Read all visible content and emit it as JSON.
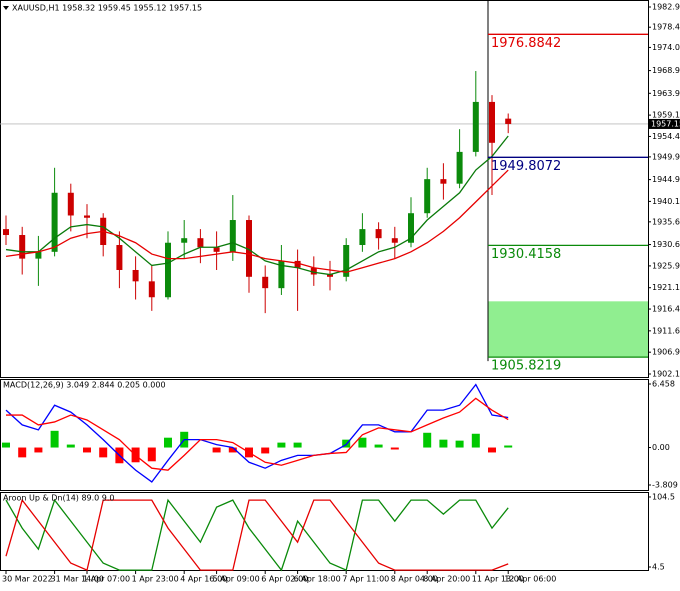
{
  "chart_data": [
    {
      "type": "candlestick",
      "title": "XAUUSD,H1  1958.32 1959.45 1955.12 1957.15",
      "categories": [
        "30 Mar 2022",
        null,
        null,
        "31 Mar 14:00",
        null,
        "1 Apr 07:00",
        null,
        null,
        "1 Apr 23:00",
        null,
        null,
        "4 Apr 16:00",
        null,
        "5 Apr 09:00",
        null,
        null,
        "6 Apr 02:00",
        null,
        "6 Apr 18:00",
        null,
        null,
        "7 Apr 11:00",
        null,
        null,
        "8 Apr 04:00",
        null,
        "8 Apr 20:00",
        null,
        null,
        "11 Apr 13:00",
        null,
        "12 Apr 06:00"
      ],
      "open": [
        1934.0,
        1932.7,
        1927.5,
        1929.0,
        1942.0,
        1937.0,
        1936.5,
        1930.5,
        1925.0,
        1922.5,
        1919.0,
        1931.0,
        1932.0,
        1930.0,
        1929.0,
        1936.0,
        1923.5,
        1921.0,
        1927.0,
        1925.5,
        1924.0,
        1923.5,
        1930.5,
        1934.0,
        1932.0,
        1931.0,
        1937.5,
        1945.0,
        1944.0,
        1951.0,
        1962.0,
        1958.32
      ],
      "high": [
        1937.0,
        1934.5,
        1932.5,
        1947.5,
        1944.0,
        1939.5,
        1937.5,
        1933.5,
        1928.0,
        1926.0,
        1933.5,
        1936.0,
        1934.0,
        1933.5,
        1941.5,
        1937.0,
        1926.0,
        1930.5,
        1929.5,
        1928.0,
        1927.0,
        1932.0,
        1937.5,
        1935.5,
        1934.5,
        1941.0,
        1947.5,
        1948.5,
        1956.0,
        1968.8,
        1963.5,
        1959.45
      ],
      "low": [
        1930.5,
        1924.0,
        1921.5,
        1928.0,
        1933.5,
        1932.0,
        1928.0,
        1921.0,
        1918.5,
        1916.0,
        1918.5,
        1927.5,
        1926.5,
        1925.0,
        1927.0,
        1920.0,
        1915.5,
        1919.5,
        1916.0,
        1921.5,
        1920.5,
        1922.5,
        1929.0,
        1929.5,
        1927.5,
        1930.0,
        1936.5,
        1940.5,
        1943.0,
        1950.0,
        1941.5,
        1955.12
      ],
      "close": [
        1932.7,
        1927.5,
        1929.0,
        1942.0,
        1937.0,
        1936.5,
        1930.5,
        1925.0,
        1922.5,
        1919.0,
        1931.0,
        1932.0,
        1930.0,
        1929.0,
        1936.0,
        1923.5,
        1921.0,
        1927.0,
        1925.5,
        1924.0,
        1923.5,
        1930.5,
        1934.0,
        1932.0,
        1931.0,
        1937.5,
        1945.0,
        1944.0,
        1951.0,
        1962.0,
        1953.0,
        1957.15
      ],
      "up_color": "#0b8a0b",
      "down_color": "#cc0000",
      "series": [
        {
          "color": "#0a7a0a",
          "values": [
            1929.5,
            1929,
            1929,
            1932,
            1934.5,
            1935,
            1934.5,
            1932,
            1929,
            1926,
            1926.5,
            1928.5,
            1930,
            1930,
            1931,
            1929.5,
            1927,
            1926,
            1925.5,
            1924.5,
            1924,
            1925,
            1927,
            1929,
            1930,
            1932,
            1936,
            1939,
            1942,
            1947,
            1950,
            1954.5
          ]
        },
        {
          "color": "#e60000",
          "values": [
            1928,
            1928.5,
            1929,
            1930,
            1932,
            1933,
            1933.5,
            1932.5,
            1931,
            1928.5,
            1927.5,
            1927.5,
            1928,
            1928.5,
            1929,
            1928.5,
            1927.5,
            1927,
            1926.5,
            1925.5,
            1925,
            1924.5,
            1925.5,
            1926.5,
            1927.5,
            1929,
            1931,
            1933.5,
            1936.5,
            1940,
            1943.5,
            1947
          ]
        }
      ],
      "levels": [
        {
          "value": 1976.8842,
          "color": "#e00000"
        },
        {
          "value": 1949.8072,
          "color": "#000080"
        },
        {
          "value": 1930.4158,
          "color": "#0a8a0a"
        },
        {
          "value": 1905.8219,
          "color": "#0a8a0a"
        }
      ],
      "zone": [
        1905.8219,
        1918.1
      ],
      "zone_color": "#90ee90",
      "current_price": 1957.15,
      "ylim": [
        1901.44,
        1984.44
      ],
      "yticks": [
        {
          "value": 1982.9,
          "label": "1982.90"
        },
        1978.45,
        {
          "value": 1974,
          "label": "1974.00"
        },
        {
          "value": 1968.9,
          "label": "1968.90"
        },
        {
          "value": 1963.9,
          "label": "1963.90"
        },
        {
          "value": 1959.1,
          "label": "1959.10"
        },
        {
          "value": 1954.4,
          "label": "1954.40"
        },
        {
          "value": 1949.9,
          "label": "1949.90"
        },
        {
          "value": 1944.9,
          "label": "1944.90"
        },
        {
          "value": 1940.1,
          "label": "1940.10"
        },
        {
          "value": 1935.6,
          "label": "1935.60"
        },
        {
          "value": 1930.6,
          "label": "1930.60"
        },
        {
          "value": 1925.9,
          "label": "1925.90"
        },
        {
          "value": 1921.1,
          "label": "1921.10"
        },
        {
          "value": 1916.4,
          "label": "1916.40"
        },
        {
          "value": 1911.6,
          "label": "1911.60"
        },
        {
          "value": 1906.9,
          "label": "1906.90"
        },
        {
          "value": 1902.1,
          "label": "1902.10"
        }
      ]
    },
    {
      "type": "macd",
      "title": "MACD(12,26,9) 3.049 2.844 0.205 0.000",
      "series": [
        {
          "color": "#0000ff",
          "values": [
            3.8,
            2.3,
            1.8,
            4.3,
            3.6,
            2.3,
            0.8,
            -0.8,
            -2.3,
            -3.5,
            -1.3,
            0.8,
            0.8,
            0.3,
            0,
            -1.5,
            -2.1,
            -1.3,
            -0.8,
            -0.8,
            -0.6,
            0.3,
            2.3,
            2.3,
            1.6,
            1.6,
            3.8,
            3.8,
            4.3,
            6.4,
            3.3,
            3.049
          ]
        },
        {
          "color": "#ff0000",
          "values": [
            3.3,
            3.3,
            2.3,
            2.6,
            3.3,
            2.8,
            1.8,
            0.8,
            -0.8,
            -2.1,
            -2.3,
            -0.8,
            0.8,
            0.8,
            0.5,
            -0.5,
            -1.5,
            -1.8,
            -1.3,
            -0.8,
            -0.6,
            -0.5,
            1.3,
            2,
            1.8,
            1.6,
            2.3,
            3,
            3.6,
            5,
            3.8,
            2.844
          ]
        }
      ],
      "histogram": {
        "values": [
          0.5,
          -1.0,
          -0.5,
          1.7,
          0.3,
          -0.5,
          -1.0,
          -1.6,
          -1.5,
          -1.4,
          1.0,
          1.6,
          0,
          -0.5,
          -0.5,
          -1.0,
          -0.6,
          0.5,
          0.5,
          0,
          0,
          0.8,
          1.0,
          0.3,
          -0.2,
          0,
          1.5,
          0.8,
          0.7,
          1.4,
          -0.5,
          0.205
        ],
        "up_color": "#00c800",
        "down_color": "#ff0000"
      },
      "ylim": [
        -4.317,
        6.966
      ],
      "yticks": [
        6.458,
        {
          "value": 0,
          "label": "0.00"
        },
        -3.809
      ]
    },
    {
      "type": "aroon",
      "title": "Aroon Up & Dn(14) 89.0 9.0",
      "series": [
        {
          "color": "#0a8a0a",
          "values": [
            100,
            60,
            30,
            100,
            70,
            40,
            10,
            0,
            0,
            0,
            100,
            70,
            40,
            90,
            100,
            60,
            30,
            0,
            70,
            40,
            10,
            0,
            100,
            100,
            70,
            100,
            100,
            80,
            100,
            100,
            60,
            89
          ]
        },
        {
          "color": "#e60000",
          "values": [
            20,
            100,
            70,
            40,
            10,
            0,
            100,
            100,
            100,
            100,
            60,
            30,
            0,
            0,
            0,
            100,
            100,
            70,
            40,
            100,
            100,
            70,
            40,
            10,
            0,
            0,
            0,
            0,
            0,
            0,
            0,
            9
          ]
        }
      ],
      "ylim": [
        0.2,
        111.6
      ],
      "yticks": [
        104.5,
        4.5
      ]
    }
  ]
}
